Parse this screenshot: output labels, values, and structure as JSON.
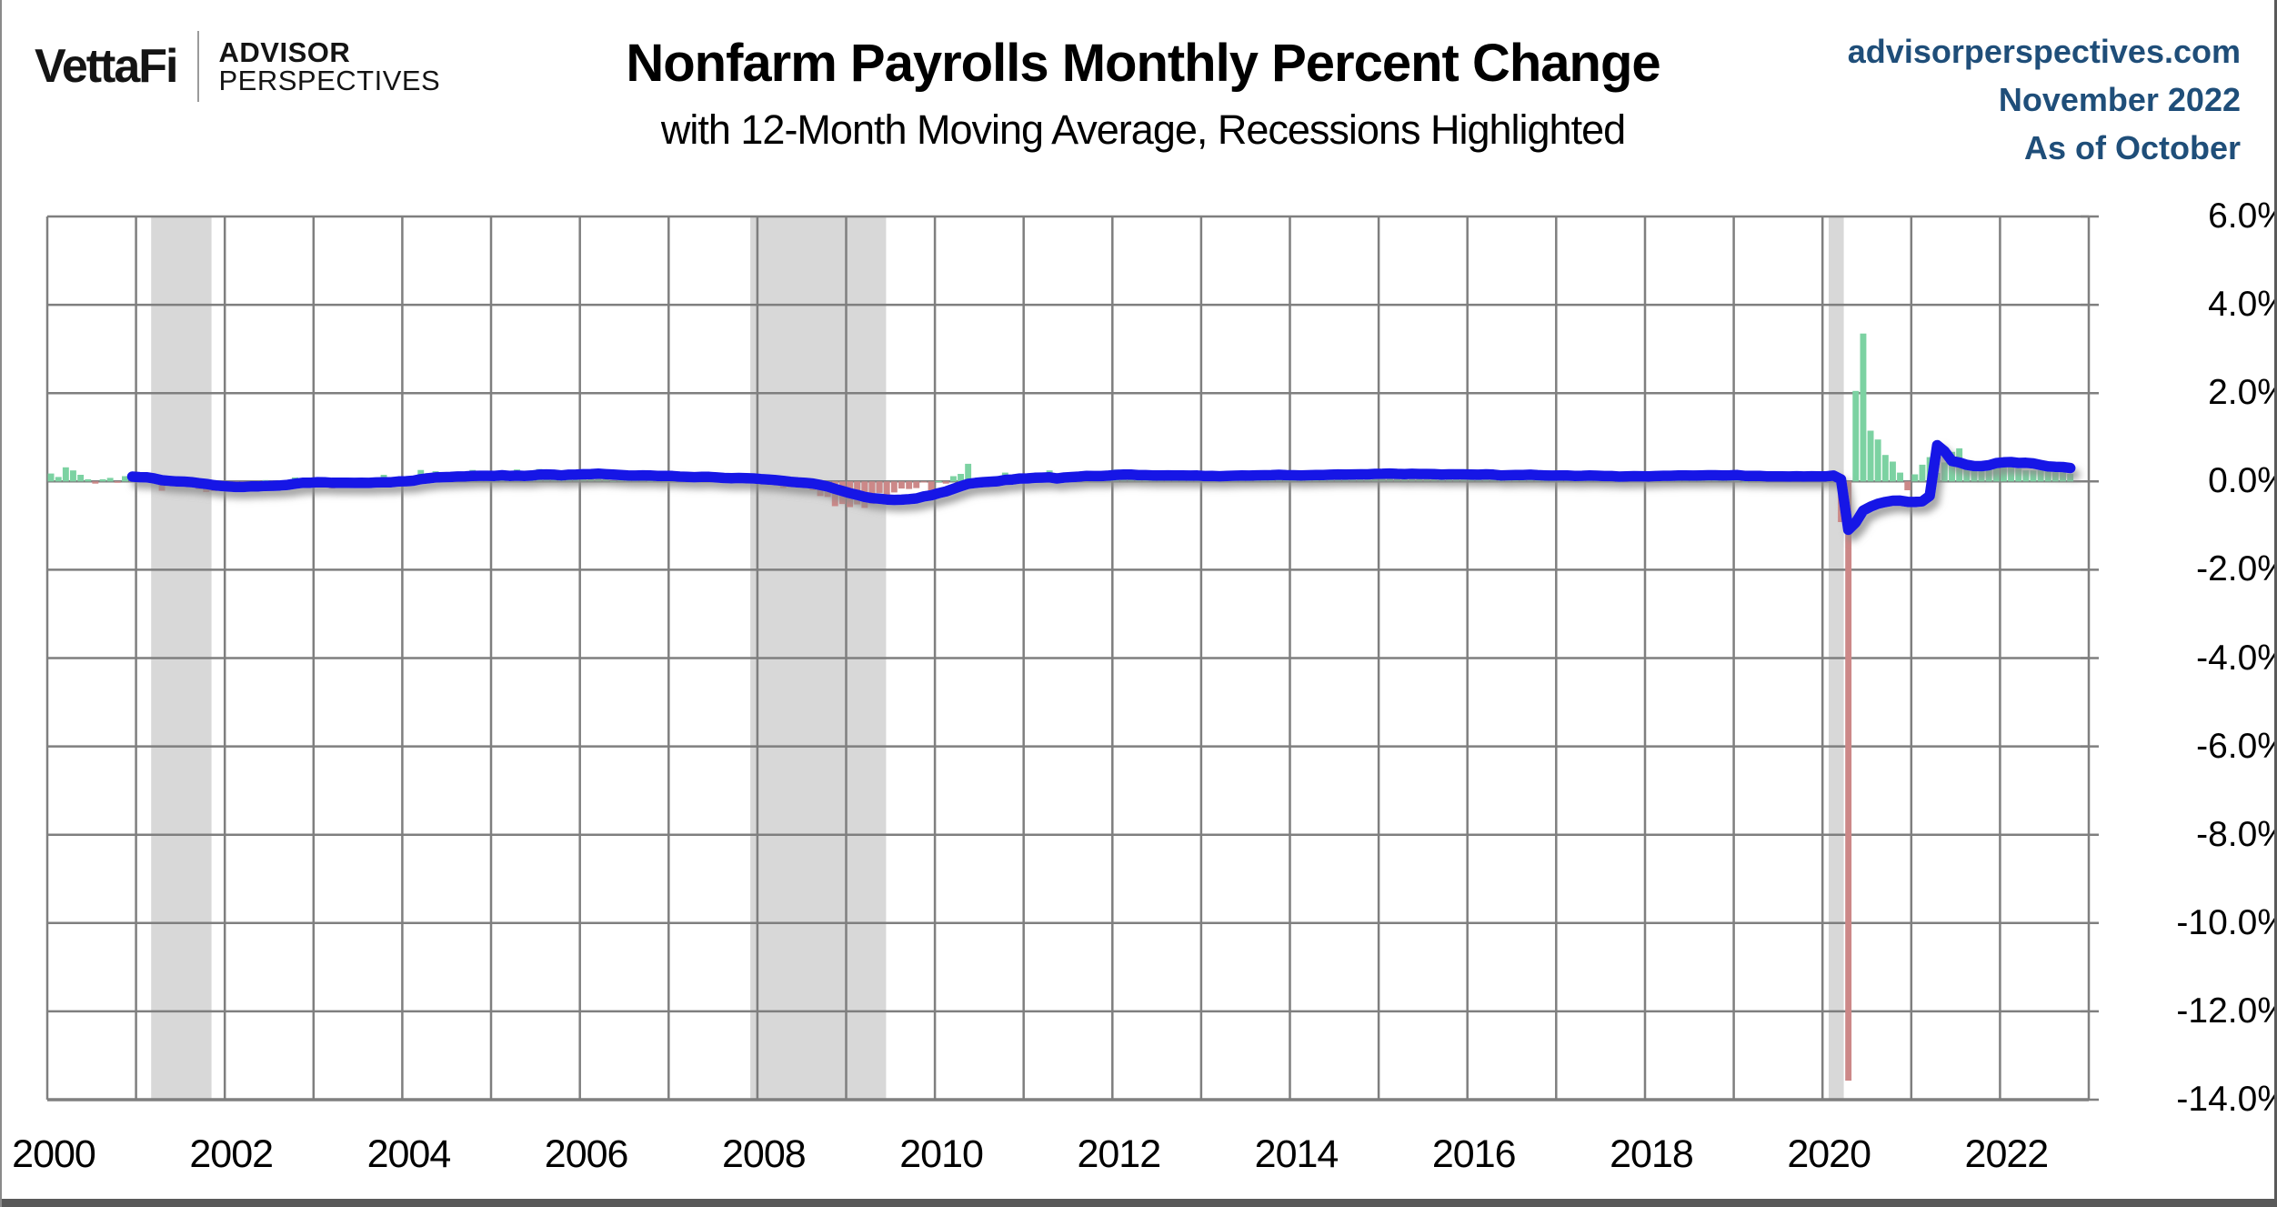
{
  "header": {
    "brand": {
      "name": "VettaFi",
      "advisor_line1": "ADVISOR",
      "advisor_line2": "PERSPECTIVES"
    },
    "title": "Nonfarm Payrolls Monthly Percent Change",
    "subtitle": "with 12-Month Moving Average, Recessions Highlighted",
    "source": {
      "site": "advisorperspectives.com",
      "date": "November 2022",
      "asof": "As of October",
      "color": "#1F4E79"
    }
  },
  "chart_data": {
    "type": "bar",
    "title": "Nonfarm Payrolls Monthly Percent Change",
    "subtitle": "with 12-Month Moving Average, Recessions Highlighted",
    "x_start": {
      "year": 2000,
      "month": 1
    },
    "x_end": {
      "year": 2022,
      "month": 10
    },
    "x_axis": {
      "range": [
        2000,
        2023
      ],
      "tick_labels": [
        "2000",
        "2002",
        "2004",
        "2006",
        "2008",
        "2010",
        "2012",
        "2014",
        "2016",
        "2018",
        "2020",
        "2022"
      ],
      "gridline_every_years": 1
    },
    "y_axis": {
      "range": [
        -14,
        6
      ],
      "step": 2,
      "tick_labels": [
        "6.0%",
        "4.0%",
        "2.0%",
        "0.0%",
        "-2.0%",
        "-4.0%",
        "-6.0%",
        "-8.0%",
        "-10.0%",
        "-12.0%",
        "-14.0%"
      ]
    },
    "recessions": [
      {
        "name": "2001 recession",
        "from": 2001.17,
        "to": 2001.85
      },
      {
        "name": "2008-2009 recession",
        "from": 2007.92,
        "to": 2009.45
      },
      {
        "name": "2020 recession",
        "from": 2020.07,
        "to": 2020.24
      }
    ],
    "monthly_pct_change": [
      0.18,
      0.1,
      0.32,
      0.25,
      0.15,
      0.05,
      -0.05,
      0.05,
      0.08,
      -0.03,
      0.12,
      0.08,
      0.05,
      0.05,
      -0.02,
      -0.21,
      -0.03,
      -0.1,
      -0.09,
      -0.11,
      -0.18,
      -0.24,
      -0.22,
      -0.13,
      -0.1,
      -0.09,
      -0.02,
      -0.06,
      -0.01,
      0.03,
      -0.05,
      -0.01,
      -0.04,
      0.09,
      0.01,
      -0.12,
      0.07,
      -0.12,
      -0.16,
      -0.04,
      -0.01,
      -0.02,
      -0.03,
      -0.03,
      0.08,
      0.15,
      0.01,
      0.09,
      0.12,
      0.03,
      0.26,
      0.19,
      0.23,
      0.06,
      0.03,
      0.09,
      0.12,
      0.26,
      0.05,
      0.1,
      0.1,
      0.18,
      0.1,
      0.27,
      0.13,
      0.18,
      0.28,
      0.14,
      0.05,
      0.06,
      0.25,
      0.12,
      0.2,
      0.23,
      0.21,
      0.13,
      0.01,
      0.06,
      0.14,
      0.13,
      0.11,
      0.01,
      0.15,
      0.13,
      0.17,
      0.06,
      0.13,
      0.06,
      0.1,
      0.05,
      -0.02,
      -0.01,
      0.06,
      0.06,
      0.08,
      0.07,
      0.01,
      -0.06,
      -0.05,
      -0.15,
      -0.13,
      -0.12,
      -0.15,
      -0.2,
      -0.33,
      -0.35,
      -0.56,
      -0.51,
      -0.58,
      -0.52,
      -0.6,
      -0.51,
      -0.26,
      -0.35,
      -0.25,
      -0.16,
      -0.17,
      -0.15,
      -0.01,
      -0.21,
      0.01,
      -0.05,
      0.12,
      0.17,
      0.4,
      -0.1,
      -0.05,
      -0.03,
      -0.04,
      0.2,
      0.1,
      0.05,
      0.05,
      0.13,
      0.16,
      0.25,
      0.08,
      0.16,
      0.08,
      0.09,
      0.17,
      0.14,
      0.11,
      0.15,
      0.27,
      0.2,
      0.18,
      0.07,
      0.08,
      0.06,
      0.12,
      0.11,
      0.13,
      0.12,
      0.1,
      0.16,
      0.14,
      0.21,
      0.1,
      0.15,
      0.16,
      0.13,
      0.08,
      0.18,
      0.15,
      0.15,
      0.2,
      0.06,
      0.12,
      0.13,
      0.16,
      0.22,
      0.16,
      0.21,
      0.17,
      0.15,
      0.18,
      0.16,
      0.21,
      0.18,
      0.15,
      0.19,
      0.06,
      0.18,
      0.24,
      0.15,
      0.17,
      0.1,
      0.1,
      0.21,
      0.19,
      0.19,
      0.09,
      0.16,
      0.15,
      0.11,
      0.02,
      0.2,
      0.22,
      0.12,
      0.17,
      0.09,
      0.11,
      0.13,
      0.15,
      0.14,
      0.06,
      0.12,
      0.1,
      0.14,
      0.13,
      0.12,
      0.01,
      0.18,
      0.15,
      0.12,
      0.12,
      0.22,
      0.12,
      0.12,
      0.18,
      0.14,
      0.11,
      0.15,
      0.07,
      0.18,
      0.1,
      0.15,
      0.2,
      0.0,
      0.1,
      0.14,
      0.04,
      0.12,
      0.1,
      0.14,
      0.13,
      0.12,
      0.17,
      0.12,
      0.21,
      0.19,
      -0.92,
      -13.57,
      2.05,
      3.35,
      1.15,
      0.95,
      0.6,
      0.45,
      0.2,
      -0.2,
      0.16,
      0.38,
      0.55,
      0.19,
      0.43,
      0.67,
      0.75,
      0.33,
      0.26,
      0.44,
      0.44,
      0.4,
      0.34,
      0.47,
      0.29,
      0.25,
      0.25,
      0.25,
      0.35,
      0.21,
      0.21,
      0.17
    ],
    "moving_average": {
      "name": "12-Month Moving Average",
      "window": 12,
      "computed_from": "monthly_pct_change"
    },
    "colors": {
      "bar_positive": "#7CD2A2",
      "bar_negative": "#CC8888",
      "ma_line": "#1414E6",
      "recession_band": "#D8D8D8",
      "gridline": "#7F7F7F",
      "header_blue": "#1F4E79",
      "axis_text": "#000000"
    }
  }
}
